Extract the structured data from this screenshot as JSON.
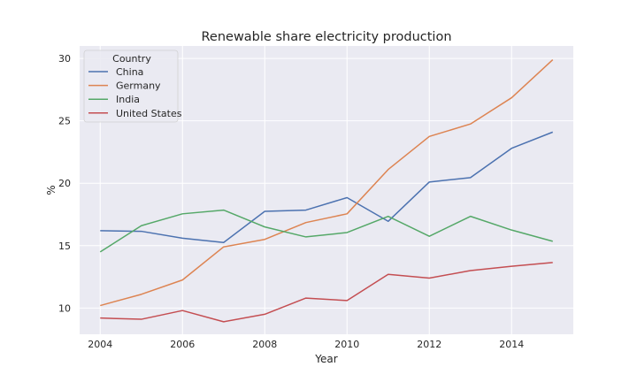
{
  "chart_data": {
    "type": "line",
    "title": "Renewable share electricity production",
    "xlabel": "Year",
    "ylabel": "%",
    "x": [
      2004,
      2005,
      2006,
      2007,
      2008,
      2009,
      2010,
      2011,
      2012,
      2013,
      2014,
      2015
    ],
    "xlim": [
      2003.5,
      2015.5
    ],
    "ylim": [
      7.9,
      31.0
    ],
    "xticks": [
      2004,
      2006,
      2008,
      2010,
      2012,
      2014
    ],
    "yticks": [
      10,
      15,
      20,
      25,
      30
    ],
    "grid": true,
    "legend": {
      "title": "Country",
      "position": "top-left"
    },
    "series": [
      {
        "name": "China",
        "color": "#4c72b0",
        "values": [
          16.2,
          16.15,
          15.6,
          15.25,
          17.75,
          17.85,
          18.85,
          16.95,
          20.1,
          20.45,
          22.8,
          24.1
        ]
      },
      {
        "name": "Germany",
        "color": "#dd8452",
        "values": [
          10.2,
          11.1,
          12.25,
          14.9,
          15.5,
          16.85,
          17.55,
          21.1,
          23.75,
          24.75,
          26.85,
          29.9
        ]
      },
      {
        "name": "India",
        "color": "#55a868",
        "values": [
          14.5,
          16.6,
          17.55,
          17.85,
          16.5,
          15.7,
          16.05,
          17.35,
          15.75,
          17.35,
          16.25,
          15.35
        ]
      },
      {
        "name": "United States",
        "color": "#c44e52",
        "values": [
          9.2,
          9.1,
          9.8,
          8.9,
          9.5,
          10.8,
          10.6,
          12.7,
          12.4,
          13.0,
          13.35,
          13.65
        ]
      }
    ]
  }
}
